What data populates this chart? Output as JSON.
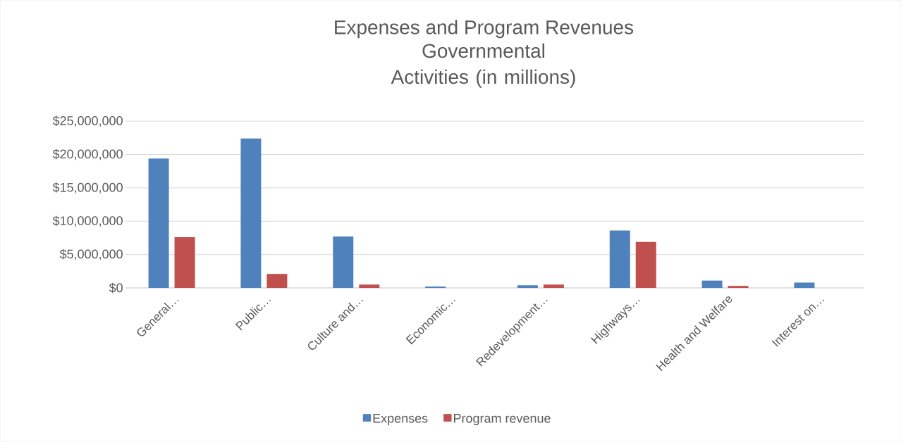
{
  "chart_data": {
    "type": "bar",
    "title": "Expenses and Program Revenues",
    "subtitle": "Governmental Activities (in millions)",
    "categories": [
      "General…",
      "Public…",
      "Culture and…",
      "Economic…",
      "Redevelopment…",
      "Highways…",
      "Health and Welfare",
      "Interest on…"
    ],
    "series": [
      {
        "name": "Expenses",
        "color": "#4f81bd",
        "values": [
          19400000,
          22400000,
          7700000,
          200000,
          400000,
          8600000,
          1100000,
          800000
        ]
      },
      {
        "name": "Program revenue",
        "color": "#c0504d",
        "values": [
          7600000,
          2100000,
          500000,
          0,
          500000,
          6900000,
          300000,
          0
        ]
      }
    ],
    "ylim": [
      0,
      25000000
    ],
    "yticks": [
      {
        "value": 0,
        "label": "$0"
      },
      {
        "value": 5000000,
        "label": "$5,000,000"
      },
      {
        "value": 10000000,
        "label": "$10,000,000"
      },
      {
        "value": 15000000,
        "label": "$15,000,000"
      },
      {
        "value": 20000000,
        "label": "$20,000,000"
      },
      {
        "value": 25000000,
        "label": "$25,000,000"
      }
    ],
    "grid": "y",
    "legend": "bottom"
  }
}
